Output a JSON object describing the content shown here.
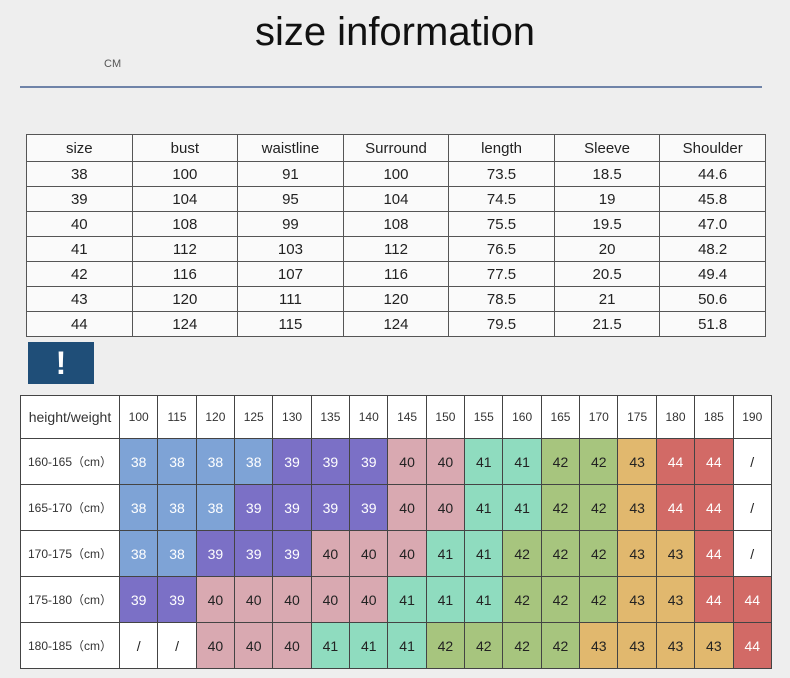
{
  "title": "size information",
  "unit": "CM",
  "measurements": {
    "headers": [
      "size",
      "bust",
      "waistline",
      "Surround",
      "length",
      "Sleeve",
      "Shoulder"
    ],
    "rows": [
      [
        "38",
        "100",
        "91",
        "100",
        "73.5",
        "18.5",
        "44.6"
      ],
      [
        "39",
        "104",
        "95",
        "104",
        "74.5",
        "19",
        "45.8"
      ],
      [
        "40",
        "108",
        "99",
        "108",
        "75.5",
        "19.5",
        "47.0"
      ],
      [
        "41",
        "112",
        "103",
        "112",
        "76.5",
        "20",
        "48.2"
      ],
      [
        "42",
        "116",
        "107",
        "116",
        "77.5",
        "20.5",
        "49.4"
      ],
      [
        "43",
        "120",
        "111",
        "120",
        "78.5",
        "21",
        "50.6"
      ],
      [
        "44",
        "124",
        "115",
        "124",
        "79.5",
        "21.5",
        "51.8"
      ]
    ]
  },
  "alert_badge": "!",
  "grid": {
    "corner": "height/weight",
    "weights": [
      "100",
      "115",
      "120",
      "125",
      "130",
      "135",
      "140",
      "145",
      "150",
      "155",
      "160",
      "165",
      "170",
      "175",
      "180",
      "185",
      "190"
    ],
    "rows": [
      {
        "height": "160-165（cm）",
        "sizes": [
          "38",
          "38",
          "38",
          "38",
          "39",
          "39",
          "39",
          "40",
          "40",
          "41",
          "41",
          "42",
          "42",
          "43",
          "44",
          "44",
          "/"
        ]
      },
      {
        "height": "165-170（cm）",
        "sizes": [
          "38",
          "38",
          "38",
          "39",
          "39",
          "39",
          "39",
          "40",
          "40",
          "41",
          "41",
          "42",
          "42",
          "43",
          "44",
          "44",
          "/"
        ]
      },
      {
        "height": "170-175（cm）",
        "sizes": [
          "38",
          "38",
          "39",
          "39",
          "39",
          "40",
          "40",
          "40",
          "41",
          "41",
          "42",
          "42",
          "42",
          "43",
          "43",
          "44",
          "/"
        ]
      },
      {
        "height": "175-180（cm）",
        "sizes": [
          "39",
          "39",
          "40",
          "40",
          "40",
          "40",
          "40",
          "41",
          "41",
          "41",
          "42",
          "42",
          "42",
          "43",
          "43",
          "44",
          "44"
        ]
      },
      {
        "height": "180-185（cm）",
        "sizes": [
          "/",
          "/",
          "40",
          "40",
          "40",
          "41",
          "41",
          "41",
          "42",
          "42",
          "42",
          "42",
          "43",
          "43",
          "43",
          "43",
          "44"
        ]
      }
    ],
    "size_colors": {
      "38": "#7ea3d6",
      "39": "#7b70c6",
      "40": "#d9a9b1",
      "41": "#8fdcbf",
      "42": "#a7c57e",
      "43": "#e1b86e",
      "44": "#d26a66",
      "/": "#ffffff"
    }
  }
}
